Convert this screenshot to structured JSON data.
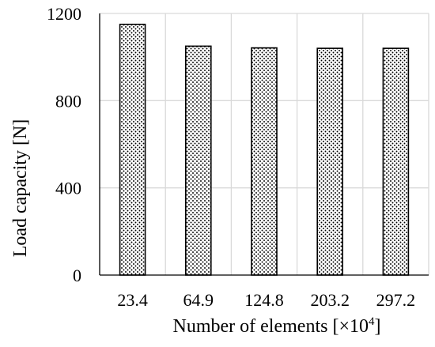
{
  "chart_data": {
    "type": "bar",
    "categories": [
      "23.4",
      "64.9",
      "124.8",
      "203.2",
      "297.2"
    ],
    "values": [
      1150,
      1050,
      1042,
      1040,
      1040
    ],
    "xlabel": "Number of elements [×10",
    "xlabel_superscript": "4",
    "xlabel_suffix": "]",
    "ylabel": "Load capacity [N]",
    "ylim": [
      0,
      1200
    ],
    "yticks": [
      0,
      400,
      800,
      1200
    ],
    "yticks_labels": [
      "0",
      "400",
      "800",
      "1200"
    ],
    "grid": true,
    "bar_fill": "dotted pattern",
    "colors": {
      "bar_stroke": "#000000",
      "dot": "#000000",
      "grid": "#d9d9d9",
      "axis": "#000000"
    }
  }
}
